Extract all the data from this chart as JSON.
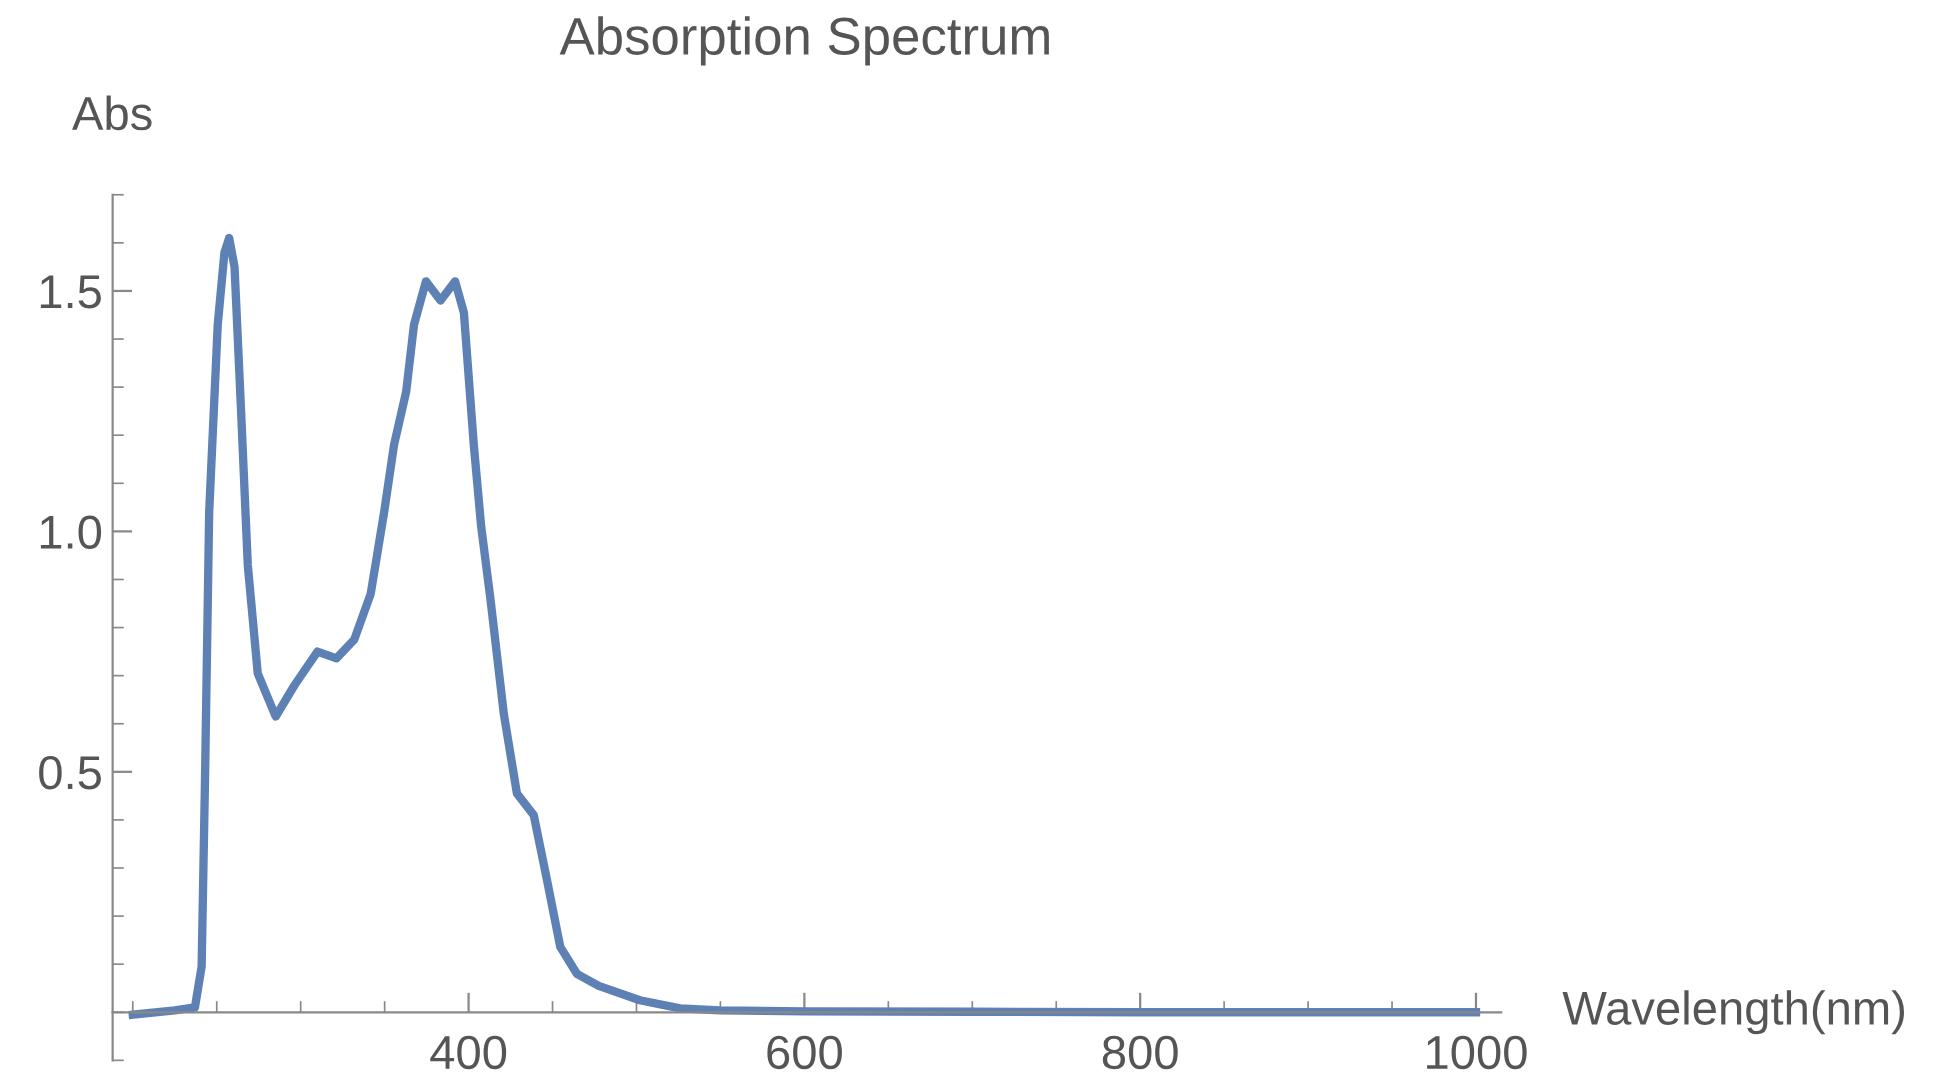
{
  "chart_data": {
    "type": "line",
    "title": "Absorption Spectrum",
    "xlabel": "Wavelength(nm)",
    "ylabel": "Abs",
    "xlim": [
      188,
      1015
    ],
    "ylim": [
      -0.1,
      1.7
    ],
    "xticks": [
      400,
      600,
      800,
      1000
    ],
    "yticks": [
      0.5,
      {
        "value": 1,
        "label": "1.0"
      },
      1.5
    ],
    "grid": false,
    "legend": false,
    "marker": "none",
    "line_style": "solid",
    "series": [
      {
        "color": "#5e81b5",
        "x": [
          200,
          225,
          237,
          241,
          243,
          245.5,
          250.6,
          254.6,
          257.4,
          260.6,
          264.5,
          268.5,
          274.4,
          285.1,
          296.3,
          310,
          321.3,
          331.9,
          341.7,
          349.7,
          355.6,
          362.8,
          367.5,
          374.6,
          383.3,
          392,
          397.2,
          403.1,
          407.5,
          413,
          421,
          428.8,
          438.8,
          446.7,
          454.6,
          464.5,
          477.5,
          502,
          526,
          550,
          600,
          700,
          800,
          900,
          1000
        ],
        "values": [
          -0.005,
          0.004,
          0.01,
          0.095,
          0.48,
          1.04,
          1.43,
          1.58,
          1.61,
          1.55,
          1.25,
          0.93,
          0.705,
          0.615,
          0.68,
          0.75,
          0.736,
          0.775,
          0.87,
          1.04,
          1.18,
          1.29,
          1.43,
          1.52,
          1.48,
          1.52,
          1.455,
          1.18,
          1.01,
          0.86,
          0.62,
          0.455,
          0.41,
          0.275,
          0.136,
          0.08,
          0.055,
          0.025,
          0.008,
          0.004,
          0.002,
          0.001,
          0.0,
          0.0,
          0.0
        ]
      }
    ]
  }
}
